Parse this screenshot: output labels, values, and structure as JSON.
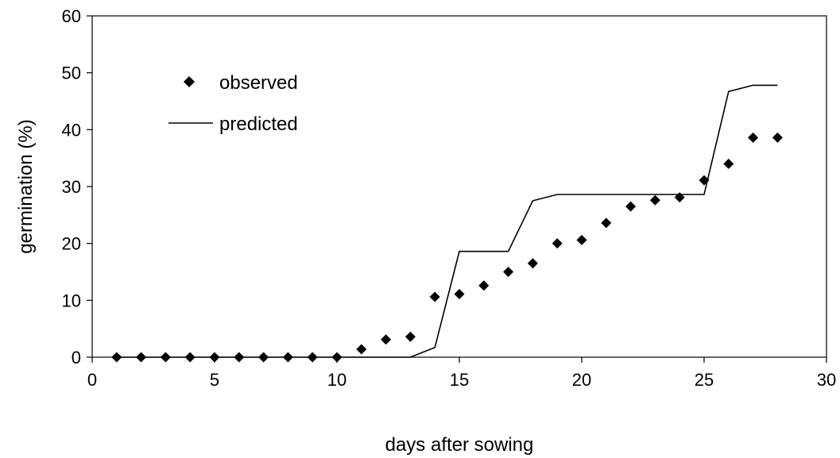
{
  "chart_data": {
    "type": "line",
    "title": "",
    "xlabel": "days after sowing",
    "ylabel": "germination (%)",
    "xlim": [
      0,
      30
    ],
    "ylim": [
      0,
      60
    ],
    "xticks": [
      0,
      5,
      10,
      15,
      20,
      25,
      30
    ],
    "yticks": [
      0,
      10,
      20,
      30,
      40,
      50,
      60
    ],
    "grid": false,
    "legend_position": "top-left",
    "series": [
      {
        "name": "observed",
        "style": "marker-diamond",
        "color": "#000000",
        "x": [
          1,
          2,
          3,
          4,
          5,
          6,
          7,
          8,
          9,
          10,
          11,
          12,
          13,
          14,
          15,
          16,
          17,
          18,
          19,
          20,
          21,
          22,
          23,
          24,
          25,
          26,
          27,
          28
        ],
        "y": [
          0,
          0,
          0,
          0,
          0,
          0,
          0,
          0,
          0,
          0,
          1.4,
          3.1,
          3.6,
          10.6,
          11.1,
          12.6,
          15.0,
          16.5,
          20.0,
          20.6,
          23.6,
          26.5,
          27.6,
          28.1,
          31.1,
          34.0,
          38.6,
          38.6
        ]
      },
      {
        "name": "predicted",
        "style": "line",
        "color": "#000000",
        "x": [
          1,
          2,
          3,
          4,
          5,
          6,
          7,
          8,
          9,
          10,
          11,
          12,
          13,
          14,
          15,
          16,
          17,
          18,
          19,
          20,
          21,
          22,
          23,
          24,
          25,
          26,
          27,
          28
        ],
        "y": [
          0,
          0,
          0,
          0,
          0,
          0,
          0,
          0,
          0,
          0,
          0,
          0,
          0,
          1.7,
          18.6,
          18.6,
          18.6,
          27.5,
          28.6,
          28.6,
          28.6,
          28.6,
          28.6,
          28.6,
          28.6,
          46.7,
          47.8,
          47.8
        ]
      }
    ]
  }
}
